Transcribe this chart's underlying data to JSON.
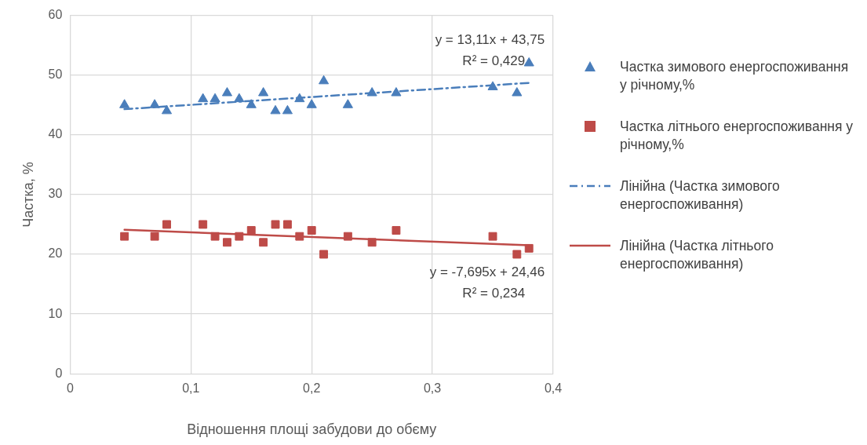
{
  "chart_data": {
    "type": "scatter",
    "xlabel": "Відношення площі забудови до обєму",
    "ylabel": "Частка, %",
    "x": [
      0.045,
      0.07,
      0.08,
      0.11,
      0.12,
      0.13,
      0.14,
      0.15,
      0.16,
      0.17,
      0.18,
      0.19,
      0.2,
      0.21,
      0.23,
      0.25,
      0.27,
      0.35,
      0.37,
      0.38
    ],
    "series": [
      {
        "name": "Частка зимового енергоспоживання у річному,%",
        "color": "#4a7ebb",
        "marker": "triangle",
        "values": [
          45,
          45,
          44,
          46,
          46,
          47,
          46,
          45,
          47,
          44,
          44,
          46,
          45,
          49,
          45,
          47,
          47,
          48,
          47,
          52
        ]
      },
      {
        "name": "Частка літнього енергоспоживання у річному,%",
        "color": "#be4b48",
        "marker": "square",
        "values": [
          23,
          23,
          25,
          25,
          23,
          22,
          23,
          24,
          22,
          25,
          25,
          23,
          24,
          20,
          23,
          22,
          24,
          23,
          20,
          21
        ]
      },
      {
        "name": "Лінійна (Частка зимового енергоспоживання)",
        "type": "line",
        "color": "#4a7ebb",
        "marker": "none",
        "line_style": "dashed",
        "values": [
          44.3,
          null,
          null,
          null,
          null,
          null,
          null,
          null,
          null,
          null,
          null,
          null,
          null,
          null,
          null,
          null,
          null,
          null,
          null,
          48.7
        ]
      },
      {
        "name": "Лінійна (Частка літнього енергоспоживання)",
        "type": "line",
        "color": "#be4b48",
        "marker": "none",
        "line_style": "solid",
        "values": [
          24.1,
          null,
          null,
          null,
          null,
          null,
          null,
          null,
          null,
          null,
          null,
          null,
          null,
          null,
          null,
          null,
          null,
          null,
          null,
          21.5
        ]
      }
    ],
    "xlim": [
      0,
      0.4
    ],
    "xticks": [
      0,
      {
        "value": 0.1,
        "label": "0,1"
      },
      {
        "value": 0.2,
        "label": "0,2"
      },
      {
        "value": 0.3,
        "label": "0,3"
      },
      {
        "value": 0.4,
        "label": "0,4"
      }
    ],
    "ylim": [
      0,
      60
    ],
    "yticks": [
      0,
      10,
      20,
      30,
      40,
      50,
      60
    ],
    "annotations": [
      "y = 13,11x + 43,75",
      "R² = 0,429",
      "y = -7,695x + 24,46",
      "R² = 0,234"
    ],
    "grid": true,
    "legend": "right"
  }
}
